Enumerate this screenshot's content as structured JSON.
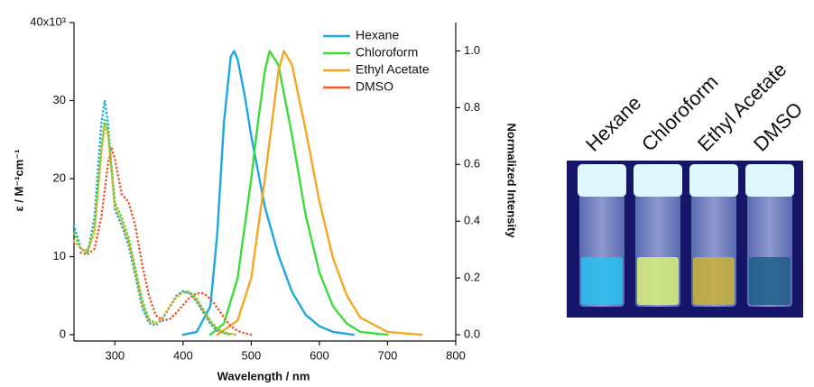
{
  "chart_data": {
    "type": "line",
    "xlabel": "Wavelength / nm",
    "ylabel": "ε / M⁻¹cm⁻¹",
    "y2label": "Normalized Intensity",
    "xlim": [
      240,
      800
    ],
    "xticks": [
      300,
      400,
      500,
      600,
      700,
      800
    ],
    "ylim": [
      -0.8,
      40
    ],
    "yticks": [
      0,
      10,
      20,
      30,
      {
        "value": 40,
        "label": "40x10³"
      }
    ],
    "y2lim": [
      -0.022,
      1.1
    ],
    "y2ticks": [
      {
        "value": 0,
        "label": "0.0"
      },
      0.2,
      0.4,
      0.6,
      0.8,
      {
        "value": 1,
        "label": "1.0"
      }
    ],
    "series": [
      {
        "name": "Hexane",
        "color": "#1ea7e1",
        "style": "solid",
        "axis": "y2",
        "x": [
          400,
          420,
          440,
          450,
          460,
          470,
          475,
          480,
          490,
          500,
          520,
          540,
          560,
          580,
          600,
          620,
          650
        ],
        "values": [
          0,
          0.01,
          0.1,
          0.35,
          0.75,
          0.98,
          1.0,
          0.97,
          0.85,
          0.7,
          0.45,
          0.28,
          0.15,
          0.07,
          0.03,
          0.01,
          0
        ]
      },
      {
        "name": "Chloroform",
        "color": "#3ddc3a",
        "style": "solid",
        "axis": "y2",
        "x": [
          440,
          460,
          480,
          500,
          510,
          520,
          527,
          540,
          560,
          580,
          600,
          620,
          640,
          660,
          700
        ],
        "values": [
          0,
          0.04,
          0.2,
          0.55,
          0.75,
          0.93,
          1.0,
          0.95,
          0.7,
          0.42,
          0.22,
          0.1,
          0.04,
          0.01,
          0
        ]
      },
      {
        "name": "Ethyl Acetate",
        "color": "#f5a623",
        "style": "solid",
        "axis": "y2",
        "x": [
          450,
          480,
          500,
          520,
          540,
          548,
          560,
          580,
          600,
          620,
          640,
          660,
          700,
          750
        ],
        "values": [
          0,
          0.05,
          0.2,
          0.55,
          0.93,
          1.0,
          0.95,
          0.72,
          0.47,
          0.27,
          0.14,
          0.06,
          0.01,
          0
        ]
      },
      {
        "name": "DMSO",
        "color": "#f0582a",
        "style": "dotted",
        "x": [
          250,
          260,
          270,
          280,
          290,
          295,
          300,
          310,
          320,
          330,
          340,
          350,
          360,
          370,
          380,
          390,
          400,
          410,
          420,
          430,
          440,
          450,
          460,
          470,
          480,
          490,
          500
        ],
        "values": [
          10.5,
          10.3,
          11,
          15,
          22,
          24,
          22.5,
          18,
          17,
          14,
          9,
          5,
          2.5,
          1.8,
          2,
          2.8,
          3.8,
          4.8,
          5.3,
          5.3,
          4.6,
          3.5,
          2.2,
          1.1,
          0.5,
          0.2,
          0
        ]
      },
      {
        "color": "#1ea7e1",
        "style": "dotted",
        "x": [
          240,
          250,
          260,
          270,
          280,
          285,
          290,
          300,
          310,
          320,
          330,
          340,
          350,
          360,
          370,
          380,
          390,
          400,
          410,
          420,
          430,
          440,
          450,
          460,
          470
        ],
        "values": [
          14,
          11,
          10.5,
          15,
          27,
          30,
          27,
          16,
          14,
          11.5,
          7.5,
          3.5,
          1.5,
          1.2,
          2,
          3.5,
          5,
          5.6,
          5.3,
          4.2,
          2.8,
          1.4,
          0.5,
          0.2,
          0
        ]
      },
      {
        "color": "#3ddc3a",
        "style": "dotted",
        "x": [
          240,
          250,
          260,
          270,
          280,
          285,
          290,
          300,
          310,
          320,
          330,
          340,
          350,
          360,
          370,
          380,
          390,
          400,
          410,
          420,
          430,
          440,
          450,
          460,
          470,
          480
        ],
        "values": [
          13,
          11,
          10.5,
          14,
          24,
          27.5,
          26,
          17,
          15,
          12.5,
          8.5,
          4.5,
          2,
          1.5,
          2.2,
          3.5,
          4.8,
          5.5,
          5.5,
          4.6,
          3.2,
          1.8,
          0.8,
          0.3,
          0.1,
          0
        ]
      },
      {
        "color": "#f5a623",
        "style": "dotted",
        "x": [
          240,
          250,
          260,
          270,
          280,
          285,
          290,
          300,
          310,
          320,
          330,
          340,
          350,
          360,
          370,
          380,
          390,
          400,
          410,
          420,
          430,
          440,
          450,
          460,
          470,
          480
        ],
        "values": [
          12,
          11,
          10.8,
          13,
          23,
          27,
          25.5,
          16.5,
          14.5,
          12,
          8,
          4,
          1.8,
          1.4,
          2.2,
          3.6,
          4.9,
          5.4,
          5.3,
          4.4,
          3,
          1.6,
          0.7,
          0.2,
          0.1,
          0
        ]
      }
    ]
  },
  "photo": {
    "labels": [
      "Hexane",
      "Chloroform",
      "Ethyl Acetate",
      "DMSO"
    ]
  }
}
